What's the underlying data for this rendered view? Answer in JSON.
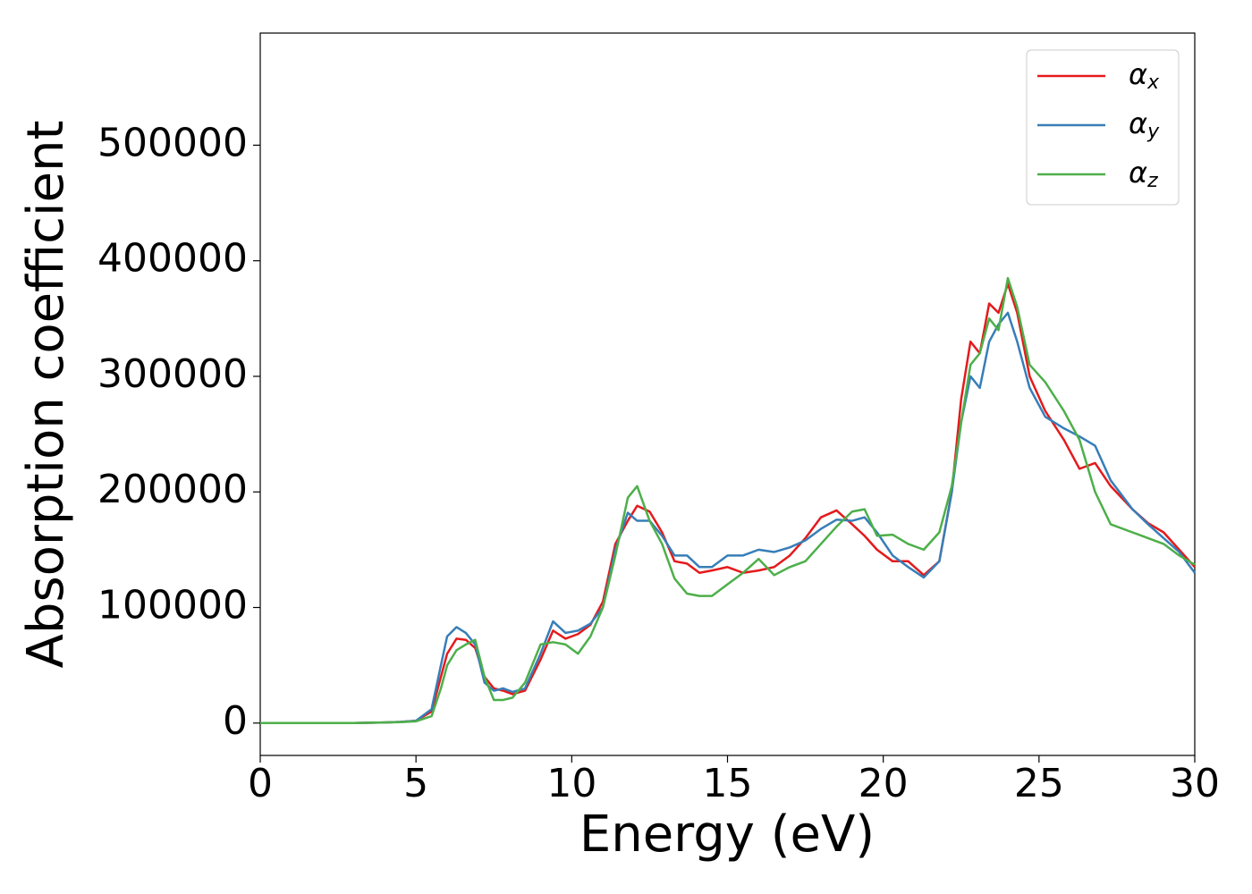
{
  "chart_data": {
    "type": "line",
    "xlabel": "Energy (eV)",
    "ylabel": "Absorption coefficient",
    "xlim": [
      0,
      30
    ],
    "xticks": [
      0,
      5,
      10,
      15,
      20,
      25,
      30
    ],
    "ylim": [
      -28000,
      597000
    ],
    "yticks": [
      0,
      100000,
      200000,
      300000,
      400000,
      500000
    ],
    "legend": "upper right",
    "grid": false,
    "x": [
      0,
      1,
      2,
      3,
      4,
      4.5,
      5,
      5.5,
      5.8,
      6,
      6.3,
      6.6,
      6.9,
      7.2,
      7.5,
      7.8,
      8.1,
      8.5,
      9,
      9.4,
      9.8,
      10.2,
      10.6,
      11,
      11.4,
      11.8,
      12.1,
      12.5,
      12.9,
      13.3,
      13.7,
      14.1,
      14.5,
      15,
      15.5,
      16,
      16.5,
      17,
      17.5,
      18,
      18.5,
      19,
      19.4,
      19.8,
      20.3,
      20.8,
      21.3,
      21.8,
      22.2,
      22.5,
      22.8,
      23.1,
      23.4,
      23.7,
      24,
      24.3,
      24.7,
      25.2,
      25.8,
      26.3,
      26.8,
      27.3,
      28,
      28.5,
      29,
      29.5,
      30
    ],
    "series": [
      {
        "name": "αx",
        "color": "#e41a1c",
        "values": [
          0,
          0,
          0,
          0,
          500,
          1000,
          2000,
          10000,
          40000,
          60000,
          73000,
          72000,
          65000,
          40000,
          30000,
          28000,
          25000,
          28000,
          55000,
          80000,
          73000,
          77000,
          85000,
          105000,
          155000,
          175000,
          188000,
          183000,
          165000,
          140000,
          138000,
          130000,
          132000,
          135000,
          130000,
          132000,
          135000,
          145000,
          160000,
          178000,
          184000,
          172000,
          162000,
          150000,
          140000,
          140000,
          128000,
          140000,
          200000,
          280000,
          330000,
          320000,
          363000,
          355000,
          380000,
          355000,
          300000,
          270000,
          245000,
          220000,
          225000,
          205000,
          185000,
          173000,
          165000,
          150000,
          135000
        ]
      },
      {
        "name": "αy",
        "color": "#377eb8",
        "values": [
          0,
          0,
          0,
          0,
          500,
          1000,
          2000,
          12000,
          50000,
          75000,
          83000,
          78000,
          68000,
          35000,
          28000,
          30000,
          27000,
          30000,
          60000,
          88000,
          78000,
          80000,
          86000,
          100000,
          150000,
          182000,
          175000,
          175000,
          162000,
          145000,
          145000,
          135000,
          135000,
          145000,
          145000,
          150000,
          148000,
          152000,
          158000,
          168000,
          176000,
          175000,
          178000,
          165000,
          145000,
          135000,
          126000,
          140000,
          200000,
          260000,
          300000,
          290000,
          330000,
          345000,
          355000,
          330000,
          290000,
          265000,
          255000,
          248000,
          240000,
          210000,
          185000,
          172000,
          160000,
          148000,
          130000
        ]
      },
      {
        "name": "αz",
        "color": "#4daf4a",
        "values": [
          0,
          0,
          0,
          0,
          500,
          800,
          1500,
          6000,
          30000,
          50000,
          63000,
          68000,
          72000,
          40000,
          20000,
          20000,
          22000,
          35000,
          68000,
          70000,
          68000,
          60000,
          75000,
          100000,
          145000,
          195000,
          205000,
          175000,
          155000,
          125000,
          112000,
          110000,
          110000,
          120000,
          130000,
          142000,
          128000,
          135000,
          140000,
          155000,
          170000,
          183000,
          185000,
          162000,
          163000,
          155000,
          150000,
          165000,
          205000,
          260000,
          310000,
          320000,
          350000,
          340000,
          385000,
          360000,
          310000,
          295000,
          270000,
          245000,
          200000,
          172000,
          165000,
          160000,
          155000,
          145000,
          137000
        ]
      }
    ]
  }
}
